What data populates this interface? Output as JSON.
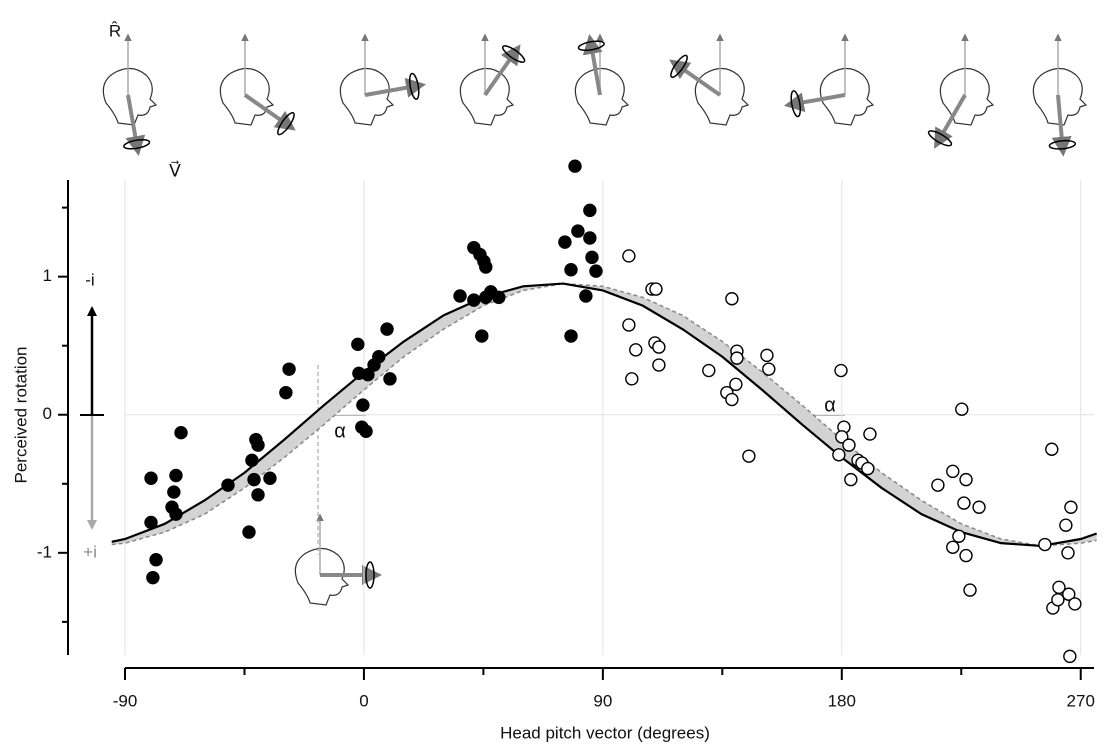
{
  "chart_data": {
    "type": "scatter",
    "xlabel": "Head pitch vector  (degrees)",
    "ylabel": "Perceived rotation",
    "annotations": {
      "alpha_left": "α",
      "alpha_right": "α",
      "minus_i": "-i",
      "plus_i": "+i",
      "r_hat": "R̂",
      "v_vec": "V⃗"
    },
    "xlim": [
      -90,
      275
    ],
    "ylim": [
      -1.74,
      1.7
    ],
    "xticks": [
      -90,
      0,
      90,
      180,
      270
    ],
    "xminor": [
      -45,
      45,
      135,
      225
    ],
    "yticks": [
      -1,
      0,
      1
    ],
    "yminor": [
      -1.5,
      -0.5,
      0.5,
      1.5
    ],
    "xgrid": true,
    "zero_line": true,
    "fit": {
      "color": "#000000",
      "x": [
        -95,
        -90,
        -75,
        -60,
        -45,
        -30,
        -15,
        0,
        15,
        30,
        45,
        60,
        75,
        90,
        105,
        120,
        135,
        150,
        165,
        180,
        195,
        210,
        225,
        240,
        255,
        270,
        276
      ],
      "values": [
        -0.92,
        -0.9,
        -0.79,
        -0.62,
        -0.42,
        -0.18,
        0.07,
        0.31,
        0.53,
        0.72,
        0.85,
        0.93,
        0.95,
        0.9,
        0.79,
        0.62,
        0.42,
        0.18,
        -0.07,
        -0.31,
        -0.53,
        -0.72,
        -0.85,
        -0.93,
        -0.95,
        -0.9,
        -0.86
      ]
    },
    "band": {
      "color": "#d3d3d3",
      "edge_color": "#888888",
      "x": [
        -95,
        -90,
        -75,
        -60,
        -45,
        -30,
        -15,
        0,
        15,
        30,
        45,
        60,
        75,
        90,
        105,
        120,
        135,
        150,
        165,
        180,
        195,
        210,
        225,
        240,
        255,
        270,
        276
      ],
      "values": [
        -0.94,
        -0.93,
        -0.85,
        -0.72,
        -0.53,
        -0.31,
        -0.07,
        0.18,
        0.42,
        0.62,
        0.79,
        0.9,
        0.95,
        0.93,
        0.85,
        0.72,
        0.53,
        0.31,
        0.07,
        -0.18,
        -0.42,
        -0.62,
        -0.79,
        -0.9,
        -0.95,
        -0.93,
        -0.91
      ]
    },
    "series": [
      {
        "color": "#000000",
        "filled": true,
        "x": [
          -80.2,
          -80.2,
          -78.3,
          -79.5,
          -70.8,
          -71.6,
          -72.3,
          -70.8,
          -68.9,
          -51.2,
          -43.3,
          -42.2,
          -40.7,
          -39.9,
          -41.4,
          -39.9,
          -35.4,
          -29.4,
          -28.2,
          -2.3,
          -1.9,
          -0.4,
          -0.8,
          0.8,
          1.5,
          3.8,
          5.6,
          8.7,
          9.8,
          36.2,
          41.4,
          41.4,
          43.7,
          45.2,
          45.9,
          44.4,
          45.9,
          47.8,
          50.8,
          79.5,
          75.7,
          80.6,
          85.1,
          85.1,
          85.9,
          87.4,
          78.0,
          83.6,
          78.0
        ],
        "values": [
          -0.78,
          -0.46,
          -1.05,
          -1.18,
          -0.44,
          -0.56,
          -0.67,
          -0.72,
          -0.13,
          -0.51,
          -0.85,
          -0.33,
          -0.18,
          -0.22,
          -0.47,
          -0.58,
          -0.46,
          0.16,
          0.33,
          0.51,
          0.3,
          0.07,
          -0.09,
          -0.12,
          0.29,
          0.36,
          0.42,
          0.62,
          0.26,
          0.86,
          0.83,
          1.21,
          1.16,
          1.11,
          1.07,
          0.57,
          0.85,
          0.89,
          0.85,
          1.8,
          1.25,
          1.33,
          1.48,
          1.28,
          1.14,
          1.04,
          1.05,
          0.86,
          0.57
        ]
      },
      {
        "color": "#000000",
        "filled": false,
        "x": [
          99.8,
          99.8,
          102.4,
          100.9,
          108.5,
          110.0,
          109.6,
          111.1,
          111.1,
          129.9,
          138.6,
          136.7,
          138.6,
          140.1,
          140.5,
          140.5,
          145.0,
          151.8,
          152.5,
          179.7,
          180.8,
          180.0,
          178.9,
          182.7,
          183.4,
          186.1,
          187.6,
          189.8,
          190.6,
          216.2,
          221.8,
          221.8,
          224.1,
          225.2,
          226.8,
          226.0,
          226.8,
          228.3,
          231.7,
          256.5,
          259.1,
          259.5,
          261.4,
          261.8,
          265.2,
          266.3,
          264.4,
          265.5,
          267.8,
          265.9
        ],
        "values": [
          1.15,
          0.65,
          0.47,
          0.26,
          0.91,
          0.91,
          0.52,
          0.49,
          0.36,
          0.32,
          0.84,
          0.16,
          0.11,
          0.22,
          0.46,
          0.41,
          -0.3,
          0.43,
          0.33,
          0.32,
          -0.09,
          -0.16,
          -0.29,
          -0.22,
          -0.47,
          -0.33,
          -0.35,
          -0.39,
          -0.14,
          -0.51,
          -0.41,
          -0.96,
          -0.88,
          0.04,
          -0.47,
          -0.64,
          -1.02,
          -1.27,
          -0.67,
          -0.94,
          -0.25,
          -1.4,
          -1.34,
          -1.25,
          -1.0,
          -0.67,
          -0.8,
          -1.3,
          -1.37,
          -1.75
        ]
      }
    ]
  }
}
